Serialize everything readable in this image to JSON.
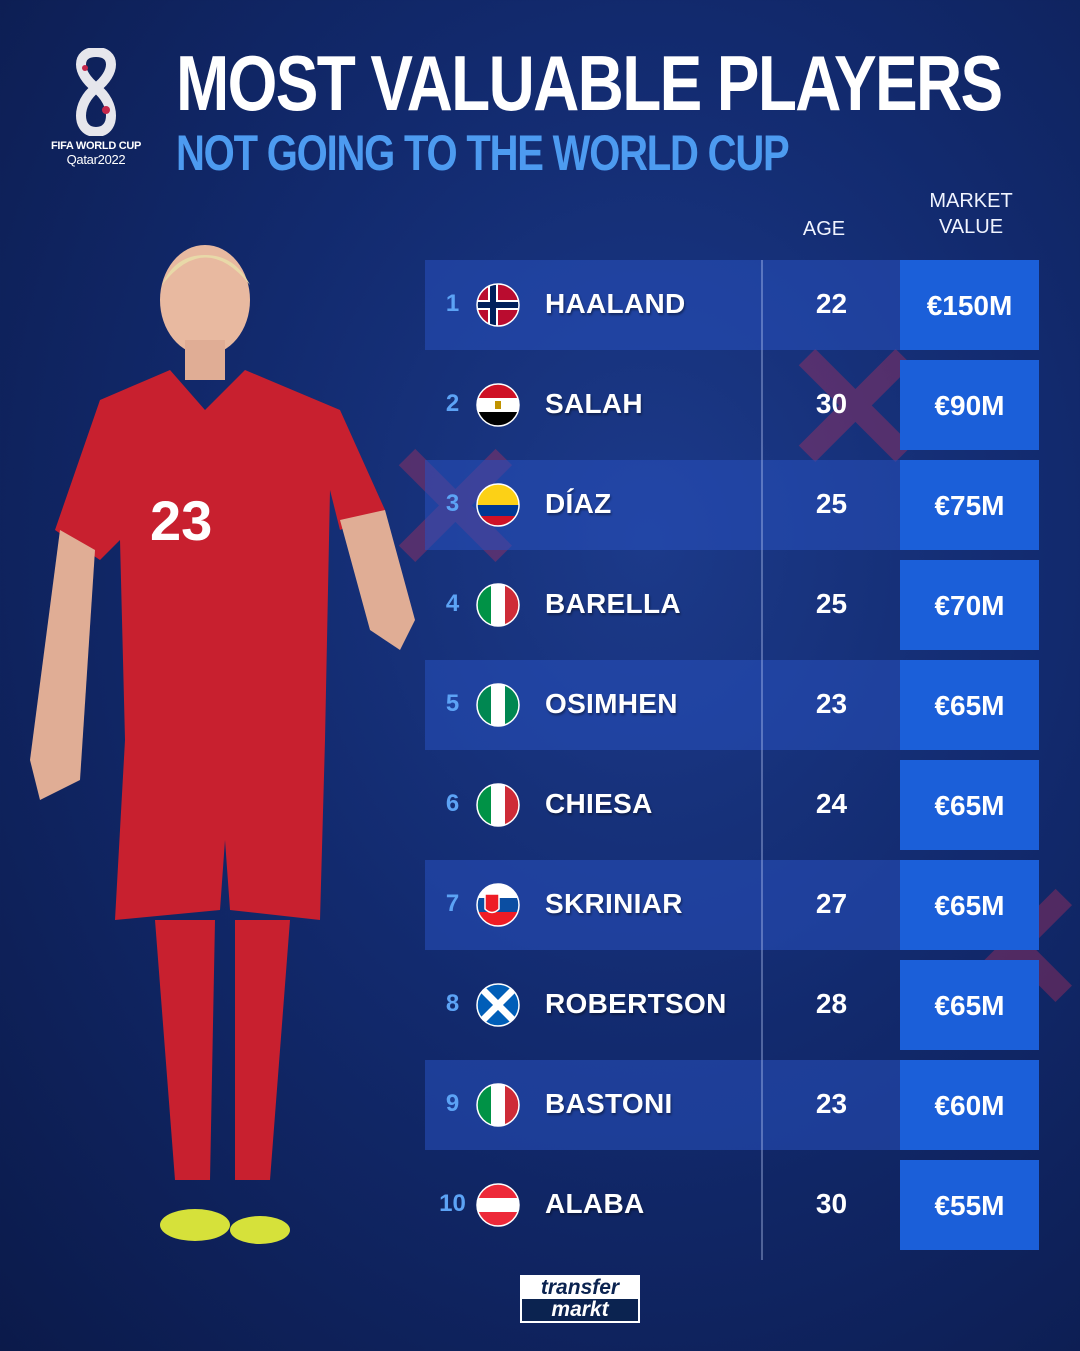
{
  "logo": {
    "line1": "FIFA WORLD CUP",
    "line2": "Qatar2022"
  },
  "title": "MOST VALUABLE PLAYERS",
  "subtitle": "NOT GOING TO THE WORLD CUP",
  "headers": {
    "age": "AGE",
    "value_line1": "MARKET",
    "value_line2": "VALUE"
  },
  "colors": {
    "accent": "#4d9bf0",
    "value_cell": "#1b5fd9"
  },
  "players": [
    {
      "rank": "1",
      "flag": "norway",
      "name": "HAALAND",
      "age": "22",
      "value": "€150M"
    },
    {
      "rank": "2",
      "flag": "egypt",
      "name": "SALAH",
      "age": "30",
      "value": "€90M"
    },
    {
      "rank": "3",
      "flag": "colombia",
      "name": "DÍAZ",
      "age": "25",
      "value": "€75M"
    },
    {
      "rank": "4",
      "flag": "italy",
      "name": "BARELLA",
      "age": "25",
      "value": "€70M"
    },
    {
      "rank": "5",
      "flag": "nigeria",
      "name": "OSIMHEN",
      "age": "23",
      "value": "€65M"
    },
    {
      "rank": "6",
      "flag": "italy",
      "name": "CHIESA",
      "age": "24",
      "value": "€65M"
    },
    {
      "rank": "7",
      "flag": "slovakia",
      "name": "SKRINIAR",
      "age": "27",
      "value": "€65M"
    },
    {
      "rank": "8",
      "flag": "scotland",
      "name": "ROBERTSON",
      "age": "28",
      "value": "€65M"
    },
    {
      "rank": "9",
      "flag": "italy",
      "name": "BASTONI",
      "age": "23",
      "value": "€60M"
    },
    {
      "rank": "10",
      "flag": "austria",
      "name": "ALABA",
      "age": "30",
      "value": "€55M"
    }
  ],
  "footer": {
    "logo_line1": "transfer",
    "logo_line2": "markt"
  }
}
